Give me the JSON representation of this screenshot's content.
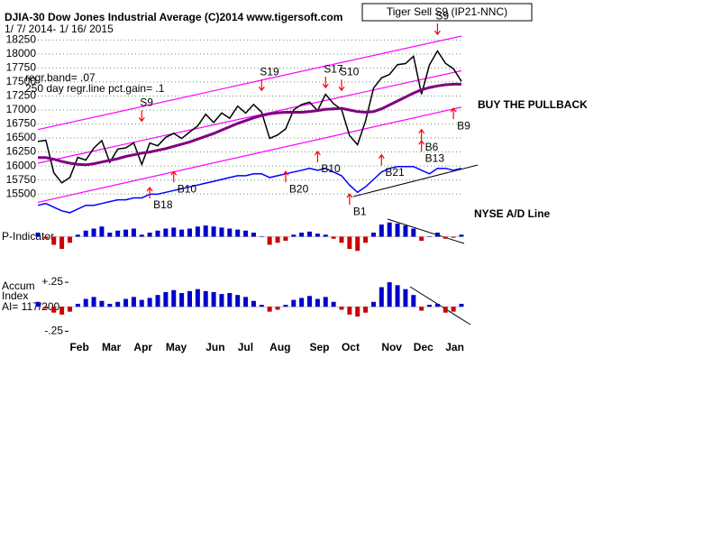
{
  "chart_data": [
    {
      "type": "line",
      "title": "DJIA-30  Dow Jones Industrial Average   (C)2014 www.tigersoft.com",
      "subtitle": "1/ 7/ 2014- 1/ 16/ 2015",
      "annotations": [
        "Tiger Sell S9 (IP21-NNC)",
        "regr.band= .07",
        "250 day regr.line pct.gain= .1",
        "BUY THE PULLBACK"
      ],
      "ylim": [
        15100,
        18400
      ],
      "yticks": [
        15500,
        15750,
        16000,
        16250,
        16500,
        16750,
        17000,
        17250,
        17500,
        17750,
        18000,
        18250
      ],
      "grid": true,
      "y2lim": [
        0,
        100
      ],
      "series": [
        {
          "color": "#000000",
          "values": [
            16437,
            16459,
            15879,
            15699,
            15794,
            16154,
            16104,
            16321,
            16453,
            16066,
            16303,
            16323,
            16412,
            16027,
            16409,
            16361,
            16512,
            16583,
            16491,
            16606,
            16717,
            16924,
            16776,
            16947,
            16851,
            17068,
            16944,
            17100,
            16961,
            16493,
            16553,
            16662,
            17001,
            17098,
            17138,
            16988,
            17280,
            17113,
            17009,
            16544,
            16380,
            16805,
            17391,
            17573,
            17635,
            17810,
            17828,
            17959,
            17281,
            17805,
            18054,
            17833,
            17737,
            17511
          ]
        },
        {
          "color": "#800080",
          "values": [
            16150,
            16150,
            16120,
            16080,
            16050,
            16030,
            16020,
            16040,
            16070,
            16100,
            16130,
            16170,
            16200,
            16230,
            16250,
            16280,
            16310,
            16350,
            16390,
            16430,
            16480,
            16530,
            16580,
            16640,
            16700,
            16760,
            16810,
            16860,
            16900,
            16930,
            16950,
            16960,
            16960,
            16960,
            16970,
            16990,
            17010,
            17020,
            17030,
            17000,
            16970,
            16960,
            16970,
            17020,
            17090,
            17160,
            17230,
            17300,
            17360,
            17400,
            17430,
            17450,
            17460,
            17460
          ]
        },
        {
          "name": "NYSE A/D Line",
          "color": "#0000ff",
          "axis": "y2",
          "values": [
            6,
            7,
            5,
            3,
            2,
            4,
            6,
            6,
            7,
            8,
            9,
            9,
            10,
            10,
            12,
            12,
            13,
            14,
            15,
            16,
            17,
            18,
            19,
            20,
            21,
            22,
            22,
            23,
            23,
            21,
            22,
            23,
            24,
            25,
            26,
            25,
            26,
            24,
            22,
            17,
            13,
            16,
            20,
            24,
            26,
            27,
            27,
            27,
            25,
            23,
            26,
            26,
            25,
            26
          ]
        }
      ],
      "band_color": "#ff00ff",
      "bands": [
        {
          "start": 16650,
          "end": 18320
        },
        {
          "start": 16050,
          "end": 17700
        },
        {
          "start": 15350,
          "end": 17050
        }
      ],
      "signal_color": "#ff0000",
      "signals": [
        {
          "label": "S9",
          "x": 13,
          "y": 16800,
          "kind": "sell"
        },
        {
          "label": "S19",
          "x": 28,
          "y": 17350,
          "kind": "sell"
        },
        {
          "label": "S17",
          "x": 36,
          "y": 17400,
          "kind": "sell"
        },
        {
          "label": "S10",
          "x": 38,
          "y": 17350,
          "kind": "sell"
        },
        {
          "label": "S9",
          "x": 50,
          "y": 18350,
          "kind": "sell"
        },
        {
          "label": "B18",
          "x": 14,
          "y": 15615,
          "kind": "buy"
        },
        {
          "label": "B10",
          "x": 17,
          "y": 15900,
          "kind": "buy"
        },
        {
          "label": "B20",
          "x": 31,
          "y": 15900,
          "kind": "buy"
        },
        {
          "label": "B10",
          "x": 35,
          "y": 16260,
          "kind": "buy"
        },
        {
          "label": "B1",
          "x": 39,
          "y": 15500,
          "kind": "buy"
        },
        {
          "label": "B21",
          "x": 43,
          "y": 16200,
          "kind": "buy"
        },
        {
          "label": "B6",
          "x": 48,
          "y": 16650,
          "kind": "buy"
        },
        {
          "label": "B13",
          "x": 48,
          "y": 16450,
          "kind": "buy"
        },
        {
          "label": "B9",
          "x": 52,
          "y": 17030,
          "kind": "buy"
        }
      ]
    },
    {
      "type": "bar",
      "title": "P-Indicator",
      "ylim": [
        -100,
        100
      ],
      "up_color": "#0000cc",
      "down_color": "#cc0000",
      "values": [
        20,
        -10,
        -40,
        -60,
        -30,
        10,
        30,
        40,
        50,
        20,
        30,
        35,
        40,
        10,
        20,
        30,
        40,
        45,
        35,
        40,
        50,
        55,
        50,
        45,
        40,
        35,
        30,
        20,
        0,
        -40,
        -30,
        -20,
        10,
        20,
        25,
        15,
        10,
        -10,
        -30,
        -60,
        -70,
        -30,
        20,
        60,
        70,
        65,
        55,
        40,
        -20,
        0,
        20,
        -10,
        -5,
        10
      ]
    },
    {
      "type": "bar",
      "title": "Accum",
      "subtitle": "Index",
      "annotations": [
        "AI= 117/200"
      ],
      "ylim": [
        -0.32,
        0.37
      ],
      "yticks": [
        {
          "value": 0.25,
          "label": "+.25"
        },
        {
          "value": -0.25,
          "label": "-.25"
        }
      ],
      "up_color": "#0000cc",
      "down_color": "#cc0000",
      "categories": [
        null,
        null,
        null,
        null,
        "Feb",
        null,
        null,
        null,
        "Mar",
        null,
        null,
        null,
        "Apr",
        null,
        null,
        null,
        "May",
        null,
        null,
        null,
        null,
        "Jun",
        null,
        null,
        null,
        "Jul",
        null,
        null,
        null,
        "Aug",
        null,
        null,
        null,
        null,
        "Sep",
        null,
        null,
        null,
        "Oct",
        null,
        null,
        null,
        null,
        "Nov",
        null,
        null,
        null,
        "Dec",
        null,
        null,
        null,
        "Jan",
        null,
        null
      ],
      "values": [
        0.05,
        -0.02,
        -0.06,
        -0.08,
        -0.05,
        0.03,
        0.08,
        0.1,
        0.06,
        0.03,
        0.05,
        0.08,
        0.1,
        0.07,
        0.09,
        0.12,
        0.15,
        0.17,
        0.14,
        0.16,
        0.18,
        0.16,
        0.15,
        0.13,
        0.14,
        0.12,
        0.1,
        0.06,
        0.02,
        -0.05,
        -0.03,
        0.02,
        0.07,
        0.09,
        0.11,
        0.08,
        0.1,
        0.05,
        -0.03,
        -0.08,
        -0.1,
        -0.06,
        0.05,
        0.2,
        0.25,
        0.22,
        0.18,
        0.12,
        -0.04,
        0.02,
        0.03,
        -0.06,
        -0.05,
        0.03
      ]
    }
  ]
}
